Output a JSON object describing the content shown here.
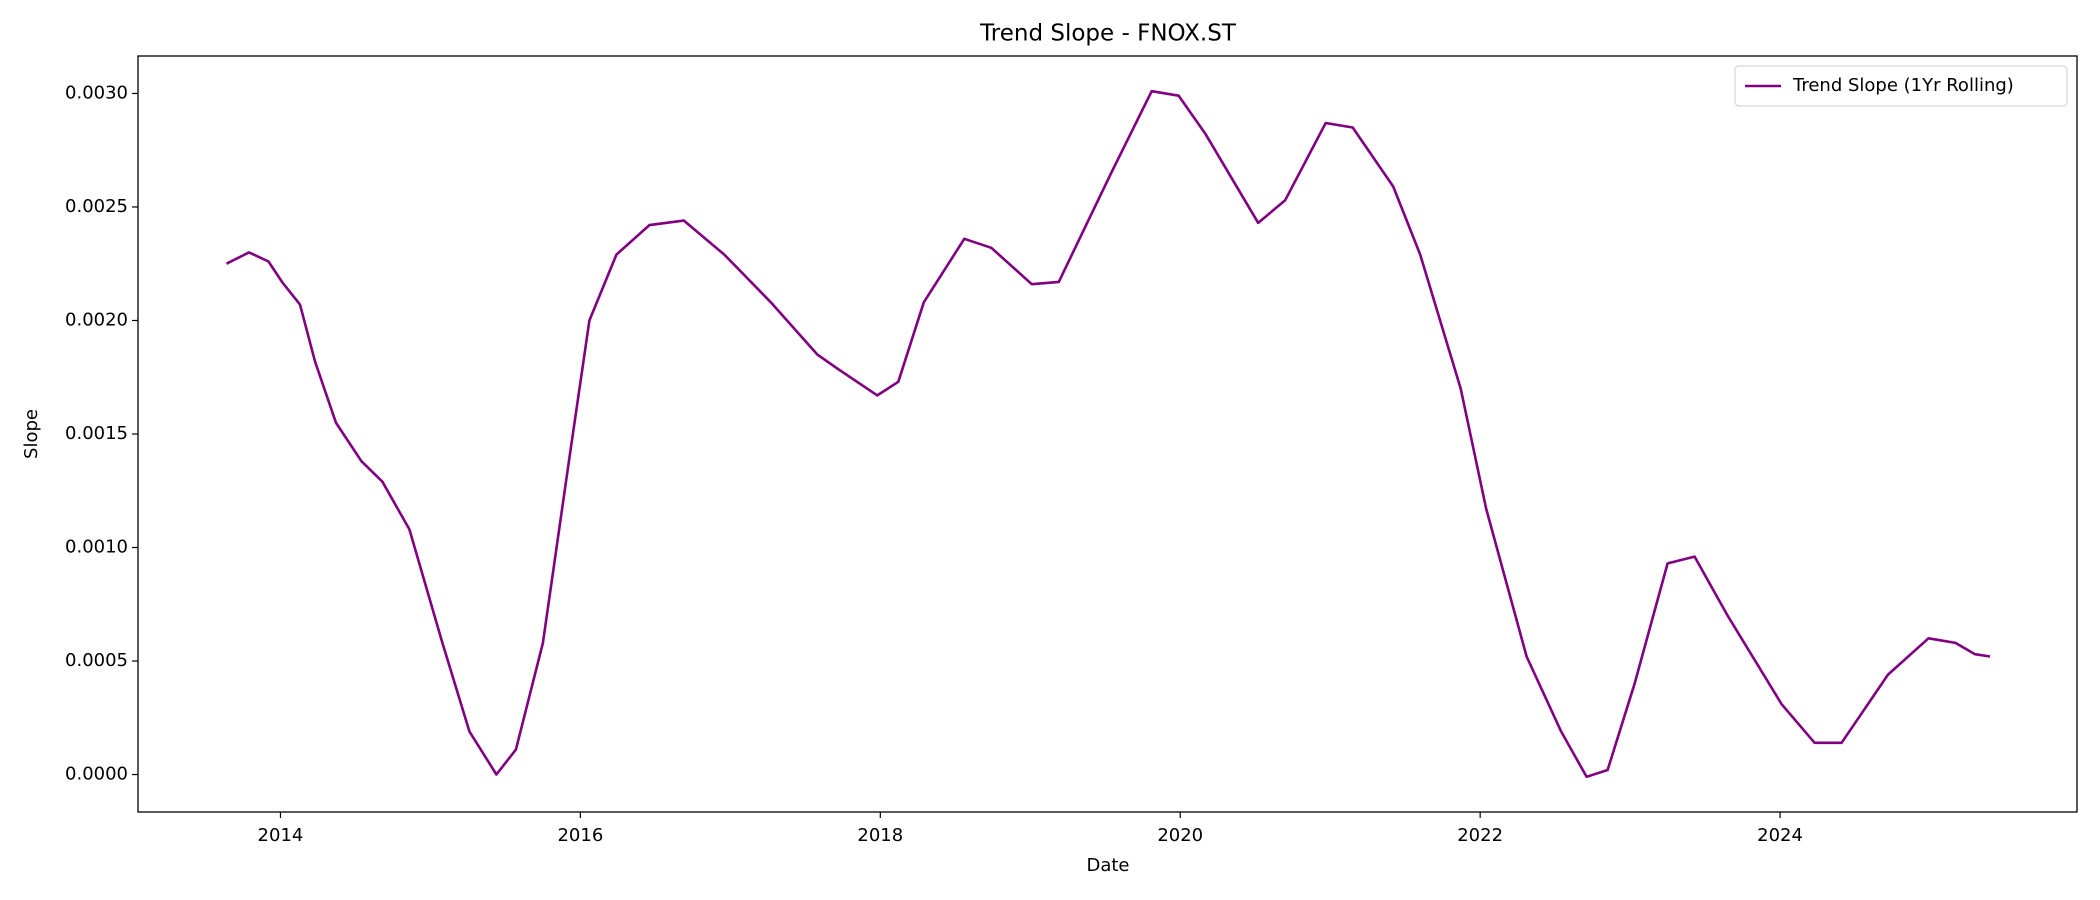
{
  "chart_data": {
    "type": "line",
    "title": "Trend Slope - FNOX.ST",
    "xlabel": "Date",
    "ylabel": "Slope",
    "x": [
      2013.64,
      2013.79,
      2013.92,
      2014.01,
      2014.13,
      2014.23,
      2014.37,
      2014.54,
      2014.68,
      2014.86,
      2015.08,
      2015.26,
      2015.44,
      2015.57,
      2015.75,
      2015.93,
      2016.06,
      2016.24,
      2016.46,
      2016.69,
      2016.96,
      2017.27,
      2017.58,
      2017.71,
      2017.98,
      2018.12,
      2018.29,
      2018.56,
      2018.74,
      2019.01,
      2019.19,
      2019.54,
      2019.81,
      2019.99,
      2020.17,
      2020.52,
      2020.7,
      2020.97,
      2021.15,
      2021.42,
      2021.6,
      2021.87,
      2022.04,
      2022.31,
      2022.54,
      2022.71,
      2022.85,
      2023.03,
      2023.25,
      2023.43,
      2023.65,
      2024.01,
      2024.23,
      2024.41,
      2024.72,
      2024.99,
      2025.17,
      2025.3,
      2025.4
    ],
    "series": [
      {
        "name": "Trend Slope (1Yr Rolling)",
        "color": "#800080",
        "values": [
          0.00225,
          0.0023,
          0.00226,
          0.00217,
          0.00207,
          0.00182,
          0.00155,
          0.00138,
          0.00129,
          0.00108,
          0.00058,
          0.00019,
          0.0,
          0.00011,
          0.00058,
          0.00141,
          0.002,
          0.00229,
          0.00242,
          0.00244,
          0.00229,
          0.00208,
          0.00185,
          0.00179,
          0.00167,
          0.00173,
          0.00208,
          0.00236,
          0.00232,
          0.00216,
          0.00217,
          0.00265,
          0.00301,
          0.00299,
          0.00282,
          0.00243,
          0.00253,
          0.00287,
          0.00285,
          0.00259,
          0.00229,
          0.0017,
          0.00117,
          0.00052,
          0.00019,
          -1e-05,
          2e-05,
          0.0004,
          0.00093,
          0.00096,
          0.0007,
          0.00031,
          0.00014,
          0.00014,
          0.00044,
          0.0006,
          0.00058,
          0.00053,
          0.00052
        ]
      }
    ],
    "xlim": [
      2013.05,
      2025.98
    ],
    "xticks": [
      2014,
      2016,
      2018,
      2020,
      2022,
      2024
    ],
    "ylim": [
      -0.000165,
      0.003165
    ],
    "yticks": [
      {
        "value": 0,
        "label": "0.0000"
      },
      {
        "value": 0.0005,
        "label": "0.0005"
      },
      {
        "value": 0.001,
        "label": "0.0010"
      },
      {
        "value": 0.0015,
        "label": "0.0015"
      },
      {
        "value": 0.002,
        "label": "0.0020"
      },
      {
        "value": 0.0025,
        "label": "0.0025"
      },
      {
        "value": 0.003,
        "label": "0.0030"
      }
    ],
    "grid": false,
    "legend": "upper right"
  }
}
